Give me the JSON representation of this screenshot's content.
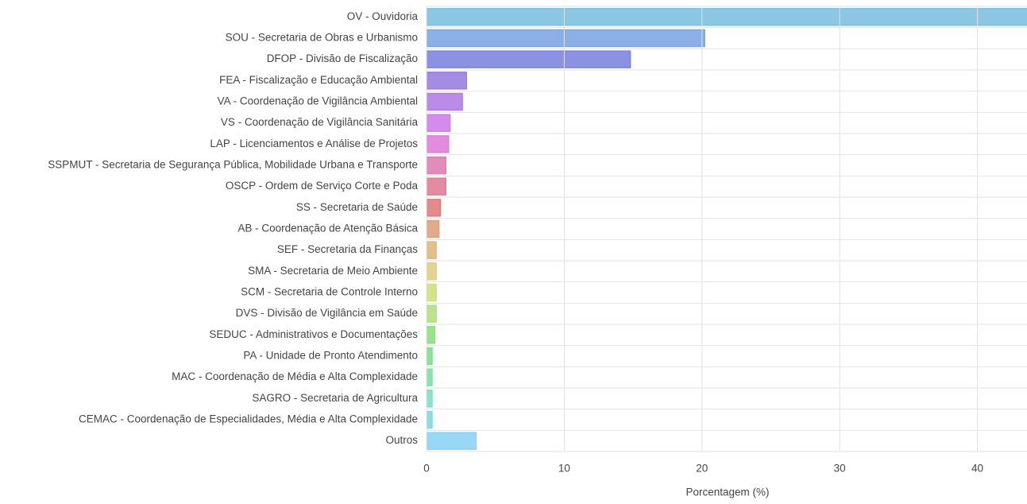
{
  "chart_data": {
    "type": "barh",
    "x_label": "Porcentagem (%)",
    "categories": [
      "OV - Ouvidoria",
      "SOU - Secretaria de Obras e Urbanismo",
      "DFOP - Divisão de Fiscalização",
      "FEA - Fiscalização e Educação Ambiental",
      "VA - Coordenação de Vigilância Ambiental",
      "VS - Coordenação de Vigilância Sanitária",
      "LAP - Licenciamentos e Análise de Projetos",
      "SSPMUT - Secretaria de Segurança Pública, Mobilidade Urbana e Transporte",
      "OSCP - Ordem de Serviço Corte e Poda",
      "SS - Secretaria de Saúde",
      "AB - Coordenação de Atenção Básica",
      "SEF - Secretaria da Finanças",
      "SMA - Secretaria de Meio Ambiente",
      "SCM - Secretaria de Controle Interno",
      "DVS - Divisão de Vigilância em Saúde",
      "SEDUC - Administrativos e Documentações",
      "PA - Unidade de Pronto Atendimento",
      "MAC - Coordenação de Média e Alta Complexidade",
      "SAGRO - Secretaria de Agricultura",
      "CEMAC - Coordenação de Especialidades, Média e Alta Complexidade",
      "Outros"
    ],
    "values": [
      44,
      20.2,
      14.8,
      2.9,
      2.6,
      1.7,
      1.6,
      1.4,
      1.4,
      1.0,
      0.9,
      0.7,
      0.7,
      0.7,
      0.7,
      0.6,
      0.4,
      0.4,
      0.4,
      0.4,
      3.6
    ],
    "colors": [
      "#7ec0e0",
      "#7ea6e4",
      "#7e85e0",
      "#9a7ee0",
      "#b27ee6",
      "#d07eea",
      "#e07ed8",
      "#e07eb4",
      "#e07e98",
      "#e07e7e",
      "#e0a07e",
      "#e0b87e",
      "#e0cf7e",
      "#d2e07e",
      "#b4e07e",
      "#8ee07e",
      "#7ee08a",
      "#7ee0a4",
      "#7ee0c2",
      "#7edce0",
      "#8ed3f5"
    ],
    "xlim": [
      0,
      43.6
    ],
    "xticks": [
      0,
      10,
      20,
      30,
      40
    ],
    "grid": true
  }
}
